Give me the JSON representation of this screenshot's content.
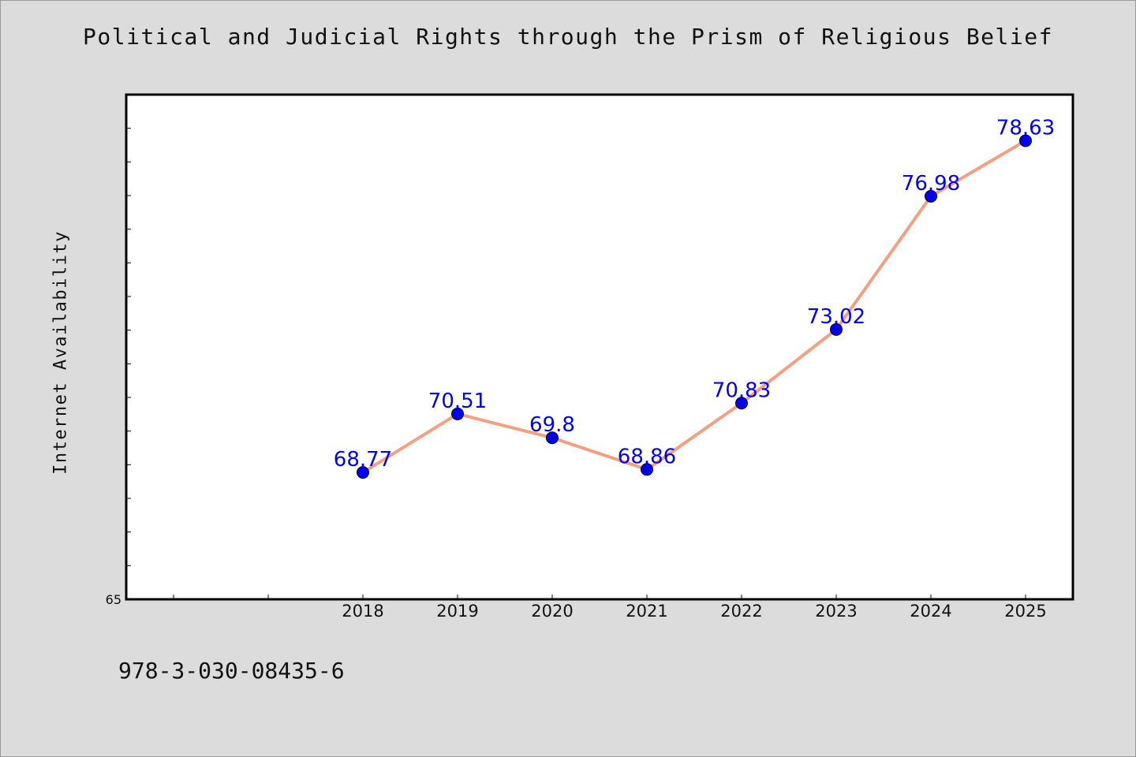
{
  "chart_data": {
    "type": "line",
    "title": "Political and Judicial Rights through the Prism of Religious Belief",
    "xlabel": "",
    "ylabel": "Internet Availability",
    "ylim": [
      65,
      80
    ],
    "xlim": [
      2015.5,
      2025.5
    ],
    "y_tick_labels": [
      "65"
    ],
    "categories": [
      "2018",
      "2019",
      "2020",
      "2021",
      "2022",
      "2023",
      "2024",
      "2025"
    ],
    "x": [
      2018,
      2019,
      2020,
      2021,
      2022,
      2023,
      2024,
      2025
    ],
    "series": [
      {
        "values": [
          68.77,
          70.51,
          69.8,
          68.86,
          70.83,
          73.02,
          76.98,
          78.63
        ],
        "labels": [
          "68.77",
          "70.51",
          "69.8",
          "68.86",
          "70.83",
          "73.02",
          "76.98",
          "78.63"
        ],
        "line_color": "#f4a080",
        "marker_color": "#0000ee",
        "label_color": "#0000ee"
      }
    ],
    "grid": false,
    "legend": "none"
  },
  "footer_text": "978-3-030-08435-6"
}
